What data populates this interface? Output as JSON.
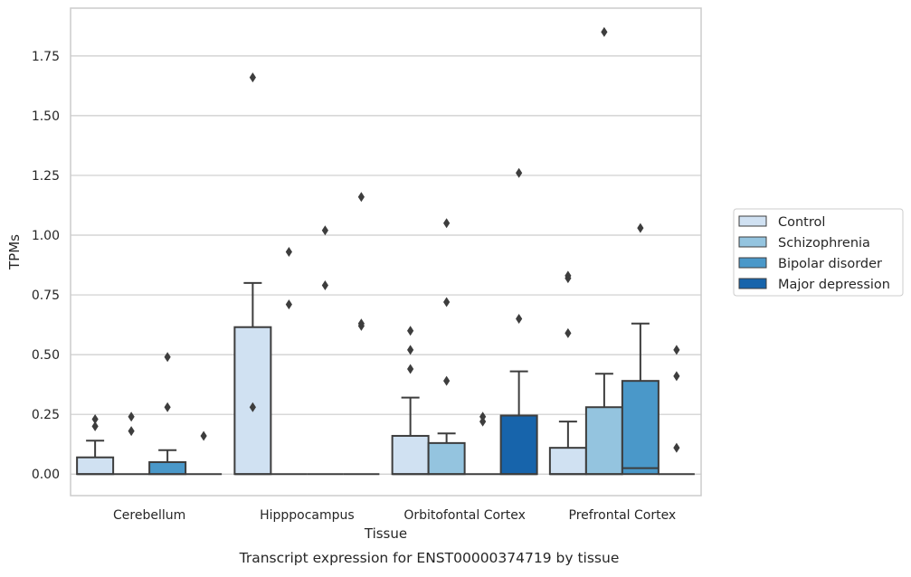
{
  "chart_data": {
    "type": "box",
    "title": "",
    "xlabel": "Tissue",
    "ylabel": "TPMs",
    "caption": "Transcript expression for ENST00000374719 by tissue",
    "ylim": [
      -0.09,
      1.95
    ],
    "yticks": [
      0.0,
      0.25,
      0.5,
      0.75,
      1.0,
      1.25,
      1.5,
      1.75
    ],
    "ytick_labels": [
      "0.00",
      "0.25",
      "0.50",
      "0.75",
      "1.00",
      "1.25",
      "1.50",
      "1.75"
    ],
    "grid": "horizontal",
    "legend_position": "right",
    "categories": [
      "Cerebellum",
      "Hipppocampus",
      "Orbitofontal Cortex",
      "Prefrontal Cortex"
    ],
    "series": [
      {
        "name": "Control",
        "color": "#d0e1f2",
        "boxes": [
          {
            "q1": 0.0,
            "median": 0.0,
            "q3": 0.07,
            "whisker_low": 0.0,
            "whisker_high": 0.14,
            "outliers": [
              0.2,
              0.23
            ]
          },
          {
            "q1": 0.0,
            "median": 0.0,
            "q3": 0.615,
            "whisker_low": 0.0,
            "whisker_high": 0.8,
            "outliers": [
              0.28,
              1.66
            ]
          },
          {
            "q1": 0.0,
            "median": 0.0,
            "q3": 0.16,
            "whisker_low": 0.0,
            "whisker_high": 0.32,
            "outliers": [
              0.44,
              0.52,
              0.6
            ]
          },
          {
            "q1": 0.0,
            "median": 0.0,
            "q3": 0.11,
            "whisker_low": 0.0,
            "whisker_high": 0.22,
            "outliers": [
              0.59,
              0.82,
              0.83
            ]
          }
        ]
      },
      {
        "name": "Schizophrenia",
        "color": "#94c4df",
        "boxes": [
          {
            "q1": 0.0,
            "median": 0.0,
            "q3": 0.0,
            "whisker_low": 0.0,
            "whisker_high": 0.0,
            "outliers": [
              0.18,
              0.24
            ]
          },
          {
            "q1": 0.0,
            "median": 0.0,
            "q3": 0.0,
            "whisker_low": 0.0,
            "whisker_high": 0.0,
            "outliers": [
              0.71,
              0.93
            ]
          },
          {
            "q1": 0.0,
            "median": 0.0,
            "q3": 0.13,
            "whisker_low": 0.0,
            "whisker_high": 0.17,
            "outliers": [
              0.39,
              0.72,
              1.05
            ]
          },
          {
            "q1": 0.0,
            "median": 0.0,
            "q3": 0.28,
            "whisker_low": 0.0,
            "whisker_high": 0.42,
            "outliers": [
              1.85
            ]
          }
        ]
      },
      {
        "name": "Bipolar disorder",
        "color": "#4a98c9",
        "boxes": [
          {
            "q1": 0.0,
            "median": 0.0,
            "q3": 0.05,
            "whisker_low": 0.0,
            "whisker_high": 0.1,
            "outliers": [
              0.28,
              0.49
            ]
          },
          {
            "q1": 0.0,
            "median": 0.0,
            "q3": 0.0,
            "whisker_low": 0.0,
            "whisker_high": 0.0,
            "outliers": [
              0.79,
              1.02
            ]
          },
          {
            "q1": 0.0,
            "median": 0.0,
            "q3": 0.0,
            "whisker_low": 0.0,
            "whisker_high": 0.0,
            "outliers": [
              0.22,
              0.24
            ]
          },
          {
            "q1": 0.0,
            "median": 0.025,
            "q3": 0.39,
            "whisker_low": 0.0,
            "whisker_high": 0.63,
            "outliers": [
              1.03
            ]
          }
        ]
      },
      {
        "name": "Major depression",
        "color": "#1764ab",
        "boxes": [
          {
            "q1": 0.0,
            "median": 0.0,
            "q3": 0.0,
            "whisker_low": 0.0,
            "whisker_high": 0.0,
            "outliers": [
              0.16
            ]
          },
          {
            "q1": 0.0,
            "median": 0.0,
            "q3": 0.0,
            "whisker_low": 0.0,
            "whisker_high": 0.0,
            "outliers": [
              0.62,
              0.63,
              1.16
            ]
          },
          {
            "q1": 0.0,
            "median": 0.0,
            "q3": 0.245,
            "whisker_low": 0.0,
            "whisker_high": 0.43,
            "outliers": [
              0.65,
              1.26
            ]
          },
          {
            "q1": 0.0,
            "median": 0.0,
            "q3": 0.0,
            "whisker_low": 0.0,
            "whisker_high": 0.0,
            "outliers": [
              0.11,
              0.41,
              0.52
            ]
          }
        ]
      }
    ]
  }
}
